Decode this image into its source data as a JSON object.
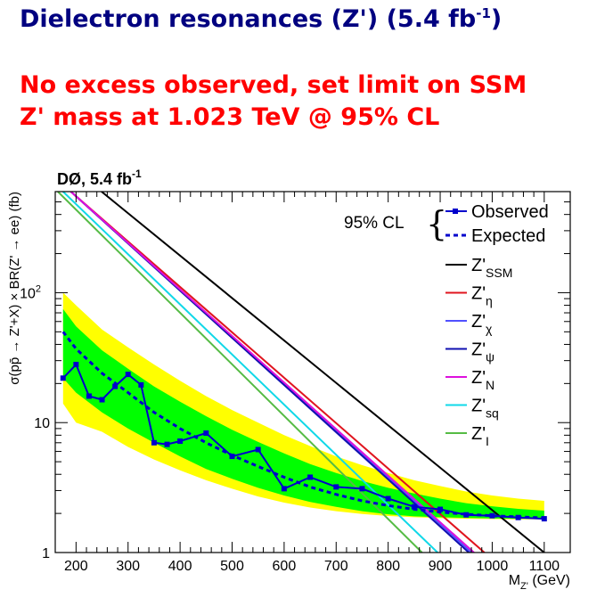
{
  "slide": {
    "title_main": "Dielectron resonances (Z') (5.4 fb",
    "title_sup": "-1",
    "title_end": ")",
    "headline_line1": "No excess observed, set limit on SSM",
    "headline_line2": "Z' mass at 1.023 TeV @ 95% CL"
  },
  "colors": {
    "title": "#000080",
    "headline": "#ff0000",
    "band2sigma": "#ffff00",
    "band1sigma": "#00ff00",
    "observed": "#0000cc",
    "expected": "#0000cc",
    "SSM": "#000000",
    "eta": "#e0141e",
    "chi": "#5050ff",
    "psi": "#1010b0",
    "N": "#dd10dd",
    "sq": "#10d8e8",
    "I": "#55bb44"
  },
  "chart_data": {
    "type": "line",
    "experiment": "DØ, 5.4 fb",
    "experiment_sup": "-1",
    "xlabel": "M",
    "xlabel_sub": "Z'",
    "xlabel_unit": "(GeV)",
    "ylabel": "σ(pp̄ → Z'+X) × BR(Z' → ee) (fb)",
    "xlim": [
      160,
      1150
    ],
    "ylim": [
      1,
      600
    ],
    "ylog": true,
    "xticks": [
      200,
      300,
      400,
      500,
      600,
      700,
      800,
      900,
      1000,
      1100
    ],
    "yticks": [
      {
        "v": 1,
        "label": "1"
      },
      {
        "v": 10,
        "label": "10"
      },
      {
        "v": 100,
        "label": "10",
        "sup": "2"
      }
    ],
    "legend_cl": "95% CL",
    "legend_observed": "Observed",
    "legend_expected": "Expected",
    "legend_models": [
      {
        "key": "SSM",
        "text": "Z'",
        "sub": "SSM"
      },
      {
        "key": "eta",
        "text": "Z'",
        "sub": "η"
      },
      {
        "key": "chi",
        "text": "Z'",
        "sub": "χ"
      },
      {
        "key": "psi",
        "text": "Z'",
        "sub": "ψ"
      },
      {
        "key": "N",
        "text": "Z'",
        "sub": "N"
      },
      {
        "key": "sq",
        "text": "Z'",
        "sub": "sq"
      },
      {
        "key": "I",
        "text": "Z'",
        "sub": "I"
      }
    ],
    "observed": {
      "x": [
        175,
        200,
        225,
        250,
        275,
        300,
        325,
        350,
        375,
        400,
        450,
        500,
        550,
        600,
        650,
        700,
        750,
        800,
        850,
        900,
        950,
        1000,
        1050,
        1100
      ],
      "y": [
        22,
        28,
        16,
        15,
        19,
        23.5,
        19.5,
        7,
        6.8,
        7.2,
        8.3,
        5.5,
        6.2,
        3.1,
        3.8,
        3.2,
        3.1,
        2.6,
        2.25,
        2.15,
        1.95,
        1.92,
        1.86,
        1.82
      ]
    },
    "expected": {
      "x": [
        175,
        200,
        250,
        300,
        350,
        400,
        450,
        500,
        550,
        600,
        650,
        700,
        750,
        800,
        850,
        900,
        950,
        1000,
        1050,
        1100
      ],
      "y": [
        50,
        37,
        24,
        17,
        12,
        9,
        7,
        5.6,
        4.6,
        3.8,
        3.2,
        2.8,
        2.5,
        2.3,
        2.15,
        2.05,
        1.97,
        1.92,
        1.88,
        1.85
      ]
    },
    "band1sigma": {
      "x": [
        175,
        200,
        250,
        300,
        350,
        400,
        450,
        500,
        550,
        600,
        650,
        700,
        750,
        800,
        850,
        900,
        950,
        1000,
        1050,
        1100
      ],
      "lo": [
        22,
        17,
        12,
        9,
        7,
        5.5,
        4.4,
        3.7,
        3.15,
        2.75,
        2.45,
        2.25,
        2.08,
        1.97,
        1.9,
        1.87,
        1.85,
        1.83,
        1.82,
        1.81
      ],
      "hi": [
        75,
        55,
        36,
        26,
        19,
        14.5,
        11.2,
        8.8,
        7.1,
        5.8,
        4.8,
        4.1,
        3.55,
        3.15,
        2.85,
        2.6,
        2.4,
        2.27,
        2.17,
        2.1
      ]
    },
    "band2sigma": {
      "x": [
        175,
        200,
        250,
        300,
        350,
        400,
        450,
        500,
        550,
        600,
        650,
        700,
        750,
        800,
        850,
        900,
        950,
        1000,
        1050,
        1100
      ],
      "lo": [
        14,
        10,
        8.5,
        6.5,
        5.2,
        4.3,
        3.6,
        3.1,
        2.7,
        2.42,
        2.22,
        2.08,
        1.98,
        1.91,
        1.87,
        1.84,
        1.82,
        1.81,
        1.8,
        1.8
      ],
      "hi": [
        100,
        80,
        52,
        38,
        28,
        21,
        16,
        12.5,
        10,
        8,
        6.6,
        5.5,
        4.7,
        4.1,
        3.6,
        3.25,
        2.95,
        2.75,
        2.6,
        2.5
      ]
    },
    "models": [
      {
        "key": "SSM",
        "x": [
          249,
          1100
        ],
        "y": [
          600,
          1
        ]
      },
      {
        "key": "eta",
        "x": [
          190,
          985
        ],
        "y": [
          600,
          1
        ]
      },
      {
        "key": "chi",
        "x": [
          190,
          960
        ],
        "y": [
          600,
          1
        ]
      },
      {
        "key": "psi",
        "x": [
          190,
          955
        ],
        "y": [
          600,
          1
        ]
      },
      {
        "key": "N",
        "x": [
          190,
          965
        ],
        "y": [
          600,
          1
        ]
      },
      {
        "key": "sq",
        "x": [
          175,
          895
        ],
        "y": [
          600,
          1
        ]
      },
      {
        "key": "I",
        "x": [
          165,
          865
        ],
        "y": [
          600,
          1
        ]
      }
    ]
  }
}
